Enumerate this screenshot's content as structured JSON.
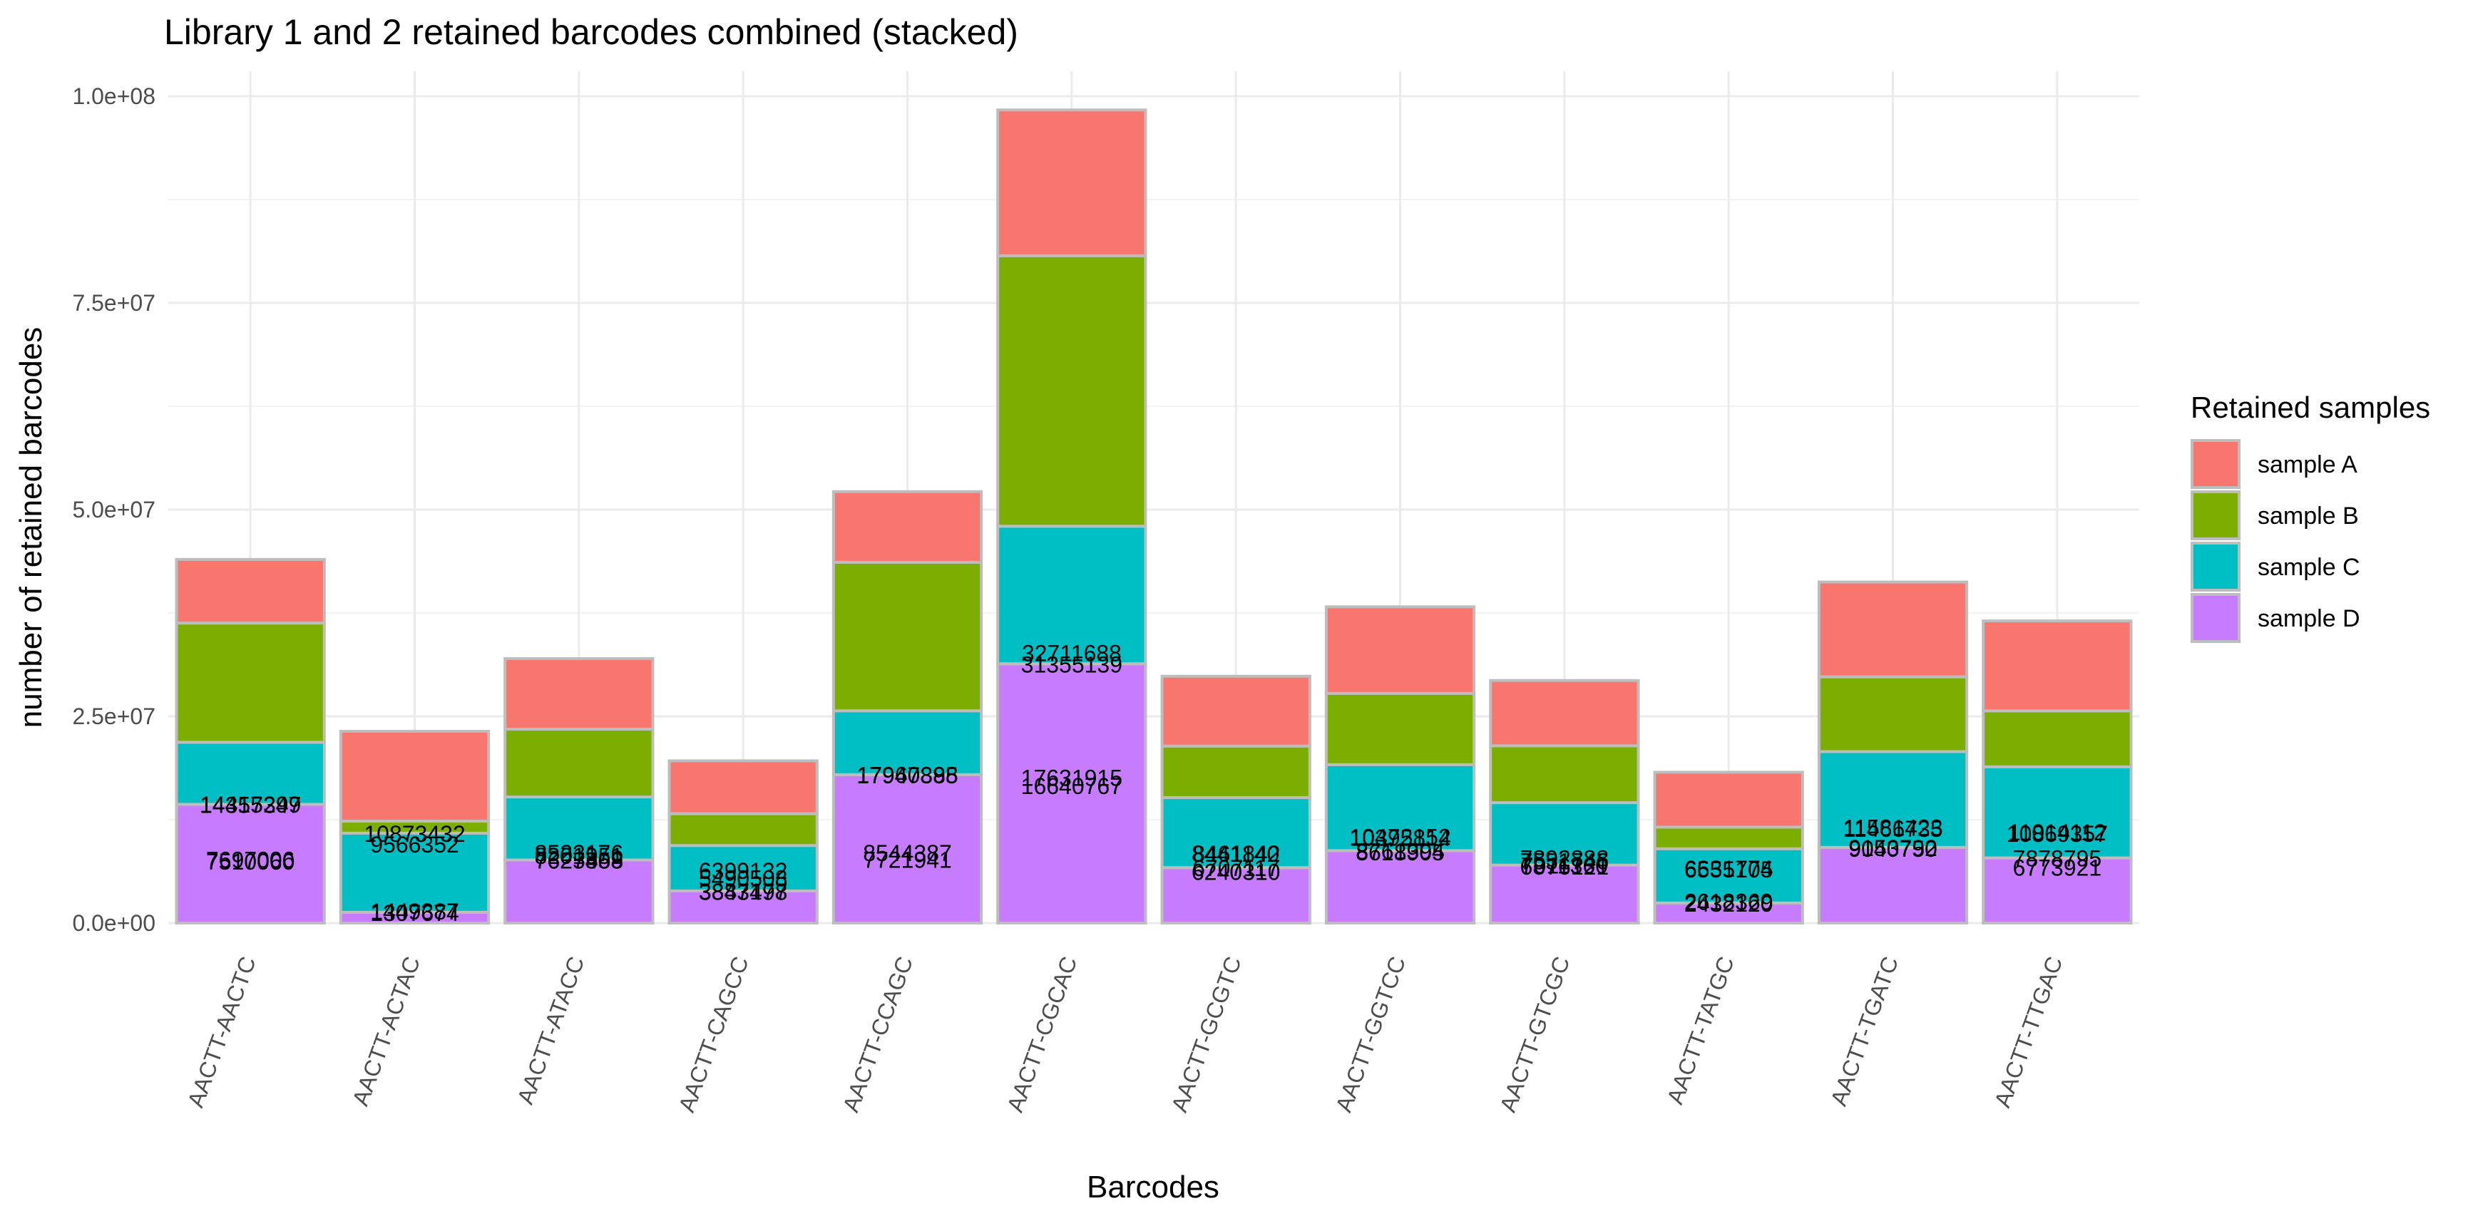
{
  "chart_data": {
    "type": "bar",
    "stacked": true,
    "title": "Library 1 and 2 retained barcodes combined (stacked)",
    "xlabel": "Barcodes",
    "ylabel": "number of retained barcodes",
    "ylim": [
      0,
      100000000
    ],
    "yticks": [
      0,
      25000000,
      50000000,
      75000000,
      100000000
    ],
    "ytick_labels": [
      "0.0e+00",
      "2.5e+07",
      "5.0e+07",
      "7.5e+07",
      "1.0e+08"
    ],
    "grid": true,
    "legend": {
      "title": "Retained samples",
      "position": "right"
    },
    "categories": [
      "AACTT-AACTC",
      "AACTT-ACTAC",
      "AACTT-ATACC",
      "AACTT-CAGCC",
      "AACTT-CCAGC",
      "AACTT-CGCAC",
      "AACTT-GCGTC",
      "AACTT-GGTCC",
      "AACTT-GTCGC",
      "AACTT-TATGC",
      "AACTT-TGATC",
      "AACTT-TTGAC"
    ],
    "series": [
      {
        "name": "sample A",
        "color": "#F8766D",
        "values": [
          7697006,
          10873432,
          8523176,
          6399132,
          8544387,
          17631915,
          8441842,
          10472152,
          7892888,
          6631774,
          11466735,
          10869357
        ]
      },
      {
        "name": "sample B",
        "color": "#7CAE00",
        "values": [
          14415299,
          1449387,
          8201951,
          3843498,
          17960398,
          32711688,
          6240310,
          8618905,
          6876121,
          2618369,
          9040750,
          6773921
        ]
      },
      {
        "name": "sample C",
        "color": "#00BFC4",
        "values": [
          7510060,
          9566352,
          7627558,
          5490508,
          7721941,
          16640767,
          8461140,
          10395814,
          7551746,
          6555105,
          11581423,
          11014112
        ]
      },
      {
        "name": "sample D",
        "color": "#C77CFF",
        "values": [
          14357347,
          1307674,
          7625409,
          3887177,
          17947885,
          31355139,
          6707117,
          8761394,
          7011360,
          2432120,
          9153792,
          7878795
        ]
      }
    ]
  }
}
